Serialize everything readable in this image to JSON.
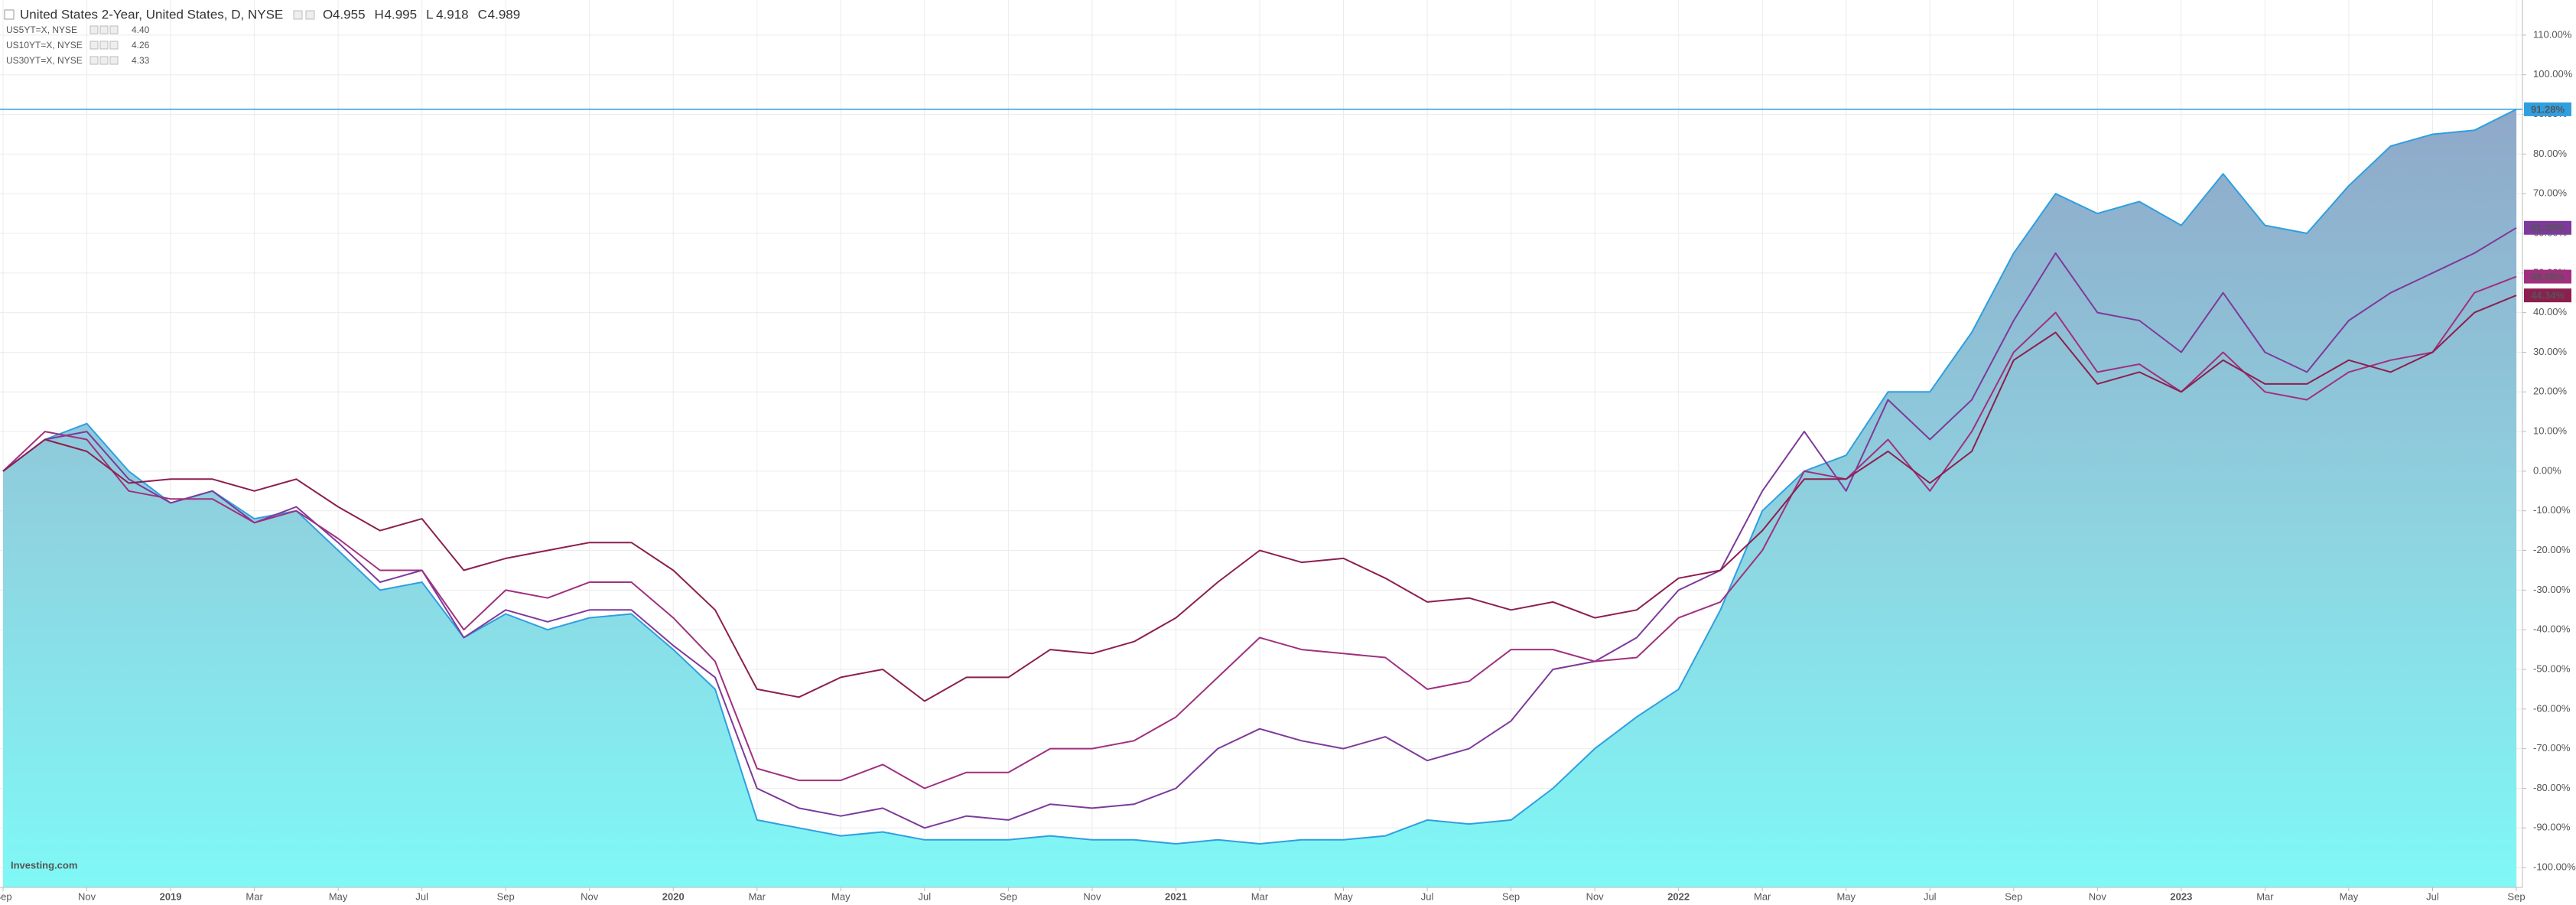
{
  "chart_data": {
    "type": "line",
    "ohlc": [
      {
        "label": "O",
        "value": "4.955"
      },
      {
        "label": "H",
        "value": "4.995"
      },
      {
        "label": "L",
        "value": "4.918"
      },
      {
        "label": "C",
        "value": "4.989"
      }
    ],
    "watermark": "Investing.com",
    "x": [
      "2018-09",
      "2018-10",
      "2018-11",
      "2018-12",
      "2019-01",
      "2019-02",
      "2019-03",
      "2019-04",
      "2019-05",
      "2019-06",
      "2019-07",
      "2019-08",
      "2019-09",
      "2019-10",
      "2019-11",
      "2019-12",
      "2020-01",
      "2020-02",
      "2020-03",
      "2020-04",
      "2020-05",
      "2020-06",
      "2020-07",
      "2020-08",
      "2020-09",
      "2020-10",
      "2020-11",
      "2020-12",
      "2021-01",
      "2021-02",
      "2021-03",
      "2021-04",
      "2021-05",
      "2021-06",
      "2021-07",
      "2021-08",
      "2021-09",
      "2021-10",
      "2021-11",
      "2021-12",
      "2022-01",
      "2022-02",
      "2022-03",
      "2022-04",
      "2022-05",
      "2022-06",
      "2022-07",
      "2022-08",
      "2022-09",
      "2022-10",
      "2022-11",
      "2022-12",
      "2023-01",
      "2023-02",
      "2023-03",
      "2023-04",
      "2023-05",
      "2023-06",
      "2023-07",
      "2023-08",
      "2023-09"
    ],
    "xticks": [
      {
        "value": "2018-09",
        "label": "Sep"
      },
      {
        "value": "2018-11",
        "label": "Nov"
      },
      {
        "value": "2019-01",
        "label": "2019"
      },
      {
        "value": "2019-03",
        "label": "Mar"
      },
      {
        "value": "2019-05",
        "label": "May"
      },
      {
        "value": "2019-07",
        "label": "Jul"
      },
      {
        "value": "2019-09",
        "label": "Sep"
      },
      {
        "value": "2019-11",
        "label": "Nov"
      },
      {
        "value": "2020-01",
        "label": "2020"
      },
      {
        "value": "2020-03",
        "label": "Mar"
      },
      {
        "value": "2020-05",
        "label": "May"
      },
      {
        "value": "2020-07",
        "label": "Jul"
      },
      {
        "value": "2020-09",
        "label": "Sep"
      },
      {
        "value": "2020-11",
        "label": "Nov"
      },
      {
        "value": "2021-01",
        "label": "2021"
      },
      {
        "value": "2021-03",
        "label": "Mar"
      },
      {
        "value": "2021-05",
        "label": "May"
      },
      {
        "value": "2021-07",
        "label": "Jul"
      },
      {
        "value": "2021-09",
        "label": "Sep"
      },
      {
        "value": "2021-11",
        "label": "Nov"
      },
      {
        "value": "2022-01",
        "label": "2022"
      },
      {
        "value": "2022-03",
        "label": "Mar"
      },
      {
        "value": "2022-05",
        "label": "May"
      },
      {
        "value": "2022-07",
        "label": "Jul"
      },
      {
        "value": "2022-09",
        "label": "Sep"
      },
      {
        "value": "2022-11",
        "label": "Nov"
      },
      {
        "value": "2023-01",
        "label": "2023"
      },
      {
        "value": "2023-03",
        "label": "Mar"
      },
      {
        "value": "2023-05",
        "label": "May"
      },
      {
        "value": "2023-07",
        "label": "Jul"
      },
      {
        "value": "2023-09",
        "label": "Sep"
      }
    ],
    "ylim": [
      -105,
      115
    ],
    "yticks": [
      {
        "value": 110,
        "label": "110.00%"
      },
      {
        "value": 100,
        "label": "100.00%"
      },
      {
        "value": 90,
        "label": "90.00%"
      },
      {
        "value": 80,
        "label": "80.00%"
      },
      {
        "value": 70,
        "label": "70.00%"
      },
      {
        "value": 60,
        "label": "60.00%"
      },
      {
        "value": 50,
        "label": "50.00%"
      },
      {
        "value": 40,
        "label": "40.00%"
      },
      {
        "value": 30,
        "label": "30.00%"
      },
      {
        "value": 20,
        "label": "20.00%"
      },
      {
        "value": 10,
        "label": "10.00%"
      },
      {
        "value": 0,
        "label": "0.00%"
      },
      {
        "value": -10,
        "label": "-10.00%"
      },
      {
        "value": -20,
        "label": "-20.00%"
      },
      {
        "value": -30,
        "label": "-30.00%"
      },
      {
        "value": -40,
        "label": "-40.00%"
      },
      {
        "value": -50,
        "label": "-50.00%"
      },
      {
        "value": -60,
        "label": "-60.00%"
      },
      {
        "value": -70,
        "label": "-70.00%"
      },
      {
        "value": -80,
        "label": "-80.00%"
      },
      {
        "value": -90,
        "label": "-90.00%"
      },
      {
        "value": -100,
        "label": "-100.00%"
      }
    ],
    "grid": true,
    "series": [
      {
        "name": "United States 2-Year, United States, D, NYSE",
        "color": "#2f9fe0",
        "area": true,
        "last_value_label": "91.28%",
        "values": [
          0,
          8,
          12,
          0,
          -8,
          -5,
          -12,
          -10,
          -20,
          -30,
          -28,
          -42,
          -36,
          -40,
          -37,
          -36,
          -45,
          -55,
          -88,
          -90,
          -92,
          -91,
          -93,
          -93,
          -93,
          -92,
          -93,
          -93,
          -94,
          -93,
          -94,
          -93,
          -93,
          -92,
          -88,
          -89,
          -88,
          -80,
          -70,
          -62,
          -55,
          -35,
          -10,
          0,
          4,
          20,
          20,
          35,
          55,
          70,
          65,
          68,
          62,
          75,
          62,
          60,
          72,
          82,
          85,
          86,
          91.28
        ]
      },
      {
        "name": "US5YT=X, NYSE",
        "color": "#7d3a9a",
        "last": "4.40",
        "last_value_label": "61.39%",
        "values": [
          0,
          8,
          10,
          -2,
          -8,
          -5,
          -13,
          -9,
          -18,
          -28,
          -25,
          -42,
          -35,
          -38,
          -35,
          -35,
          -44,
          -52,
          -80,
          -85,
          -87,
          -85,
          -90,
          -87,
          -88,
          -84,
          -85,
          -84,
          -80,
          -70,
          -65,
          -68,
          -70,
          -67,
          -73,
          -70,
          -63,
          -50,
          -48,
          -42,
          -30,
          -25,
          -5,
          10,
          -5,
          18,
          8,
          18,
          38,
          55,
          40,
          38,
          30,
          45,
          30,
          25,
          38,
          45,
          50,
          55,
          61.39
        ]
      },
      {
        "name": "US10YT=X, NYSE",
        "color": "#a0307f",
        "last": "4.26",
        "last_value_label": "49.08%",
        "values": [
          0,
          10,
          8,
          -5,
          -7,
          -7,
          -13,
          -10,
          -17,
          -25,
          -25,
          -40,
          -30,
          -32,
          -28,
          -28,
          -37,
          -48,
          -75,
          -78,
          -78,
          -74,
          -80,
          -76,
          -76,
          -70,
          -70,
          -68,
          -62,
          -52,
          -42,
          -45,
          -46,
          -47,
          -55,
          -53,
          -45,
          -45,
          -48,
          -47,
          -37,
          -33,
          -20,
          0,
          -2,
          8,
          -5,
          10,
          30,
          40,
          25,
          27,
          20,
          30,
          20,
          18,
          25,
          28,
          30,
          45,
          49.08
        ]
      },
      {
        "name": "US30YT=X, NYSE",
        "color": "#8c1f4f",
        "last": "4.33",
        "last_value_label": "44.34%",
        "values": [
          0,
          8,
          5,
          -3,
          -2,
          -2,
          -5,
          -2,
          -9,
          -15,
          -12,
          -25,
          -22,
          -20,
          -18,
          -18,
          -25,
          -35,
          -55,
          -57,
          -52,
          -50,
          -58,
          -52,
          -52,
          -45,
          -46,
          -43,
          -37,
          -28,
          -20,
          -23,
          -22,
          -27,
          -33,
          -32,
          -35,
          -33,
          -37,
          -35,
          -27,
          -25,
          -15,
          -2,
          -2,
          5,
          -3,
          5,
          28,
          35,
          22,
          25,
          20,
          28,
          22,
          22,
          28,
          25,
          30,
          40,
          44.34
        ]
      }
    ]
  }
}
